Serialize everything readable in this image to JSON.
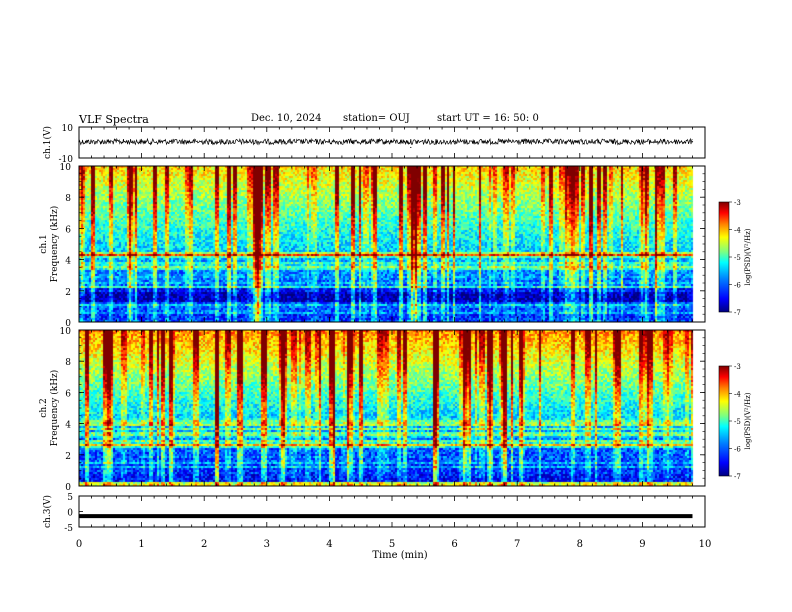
{
  "header": {
    "title": "VLF Spectra",
    "date": "Dec. 10, 2024",
    "station": "station= OUJ",
    "start": "start  UT  =   16: 50: 0"
  },
  "colors": {
    "trace": "#000000",
    "colormap": [
      "#00007f",
      "#0000ff",
      "#0080ff",
      "#00ffff",
      "#7fff7f",
      "#ffff00",
      "#ff8000",
      "#ff0000",
      "#7f0000"
    ]
  },
  "chart_data": [
    {
      "type": "line",
      "panel": "ch1-waveform",
      "ylabel": "ch.1(V)",
      "xlim": [
        0,
        10
      ],
      "ylim": [
        -10,
        10
      ],
      "yticks": [
        "10",
        "-10"
      ],
      "series": [
        {
          "values": [
            0.5,
            0.5,
            0.5,
            -0.3,
            0.5,
            0.5,
            -3.2,
            0.5,
            0.5,
            0.5
          ],
          "x": [
            0,
            1,
            2,
            3,
            4,
            5,
            5.3,
            6,
            7,
            9.8
          ]
        }
      ]
    },
    {
      "type": "heatmap",
      "panel": "ch1-spectrogram",
      "ylabel_line1": "ch.1",
      "ylabel_line2": "Frequency  (kHz)",
      "xlim": [
        0,
        10
      ],
      "ylim": [
        0,
        10
      ],
      "yticks": [
        "0",
        "2",
        "4",
        "6",
        "8",
        "10"
      ],
      "colorbar": {
        "label": "log(PSD)(V²/Hz)",
        "range": [
          -7,
          -3
        ],
        "ticks": [
          "-3",
          "-4",
          "-5",
          "-6",
          "-7"
        ]
      }
    },
    {
      "type": "heatmap",
      "panel": "ch2-spectrogram",
      "ylabel_line1": "ch.2",
      "ylabel_line2": "Frequency  (kHz)",
      "xlim": [
        0,
        10
      ],
      "ylim": [
        0,
        10
      ],
      "yticks": [
        "0",
        "2",
        "4",
        "6",
        "8",
        "10"
      ],
      "colorbar": {
        "label": "log(PSD)(V²/Hz)",
        "range": [
          -7,
          -3
        ],
        "ticks": [
          "-3",
          "-4",
          "-5",
          "-6",
          "-7"
        ]
      }
    },
    {
      "type": "line",
      "panel": "ch3-waveform",
      "ylabel": "ch.3(V)",
      "xlabel": "Time  (min)",
      "xlim": [
        0,
        10
      ],
      "ylim": [
        -5,
        5
      ],
      "yticks": [
        "5",
        "0",
        "-5"
      ],
      "xticks": [
        "0",
        "1",
        "2",
        "3",
        "4",
        "5",
        "6",
        "7",
        "8",
        "9",
        "10"
      ],
      "series": [
        {
          "values": [
            -1.5,
            -1.5
          ],
          "x": [
            0,
            9.8
          ]
        }
      ]
    }
  ]
}
